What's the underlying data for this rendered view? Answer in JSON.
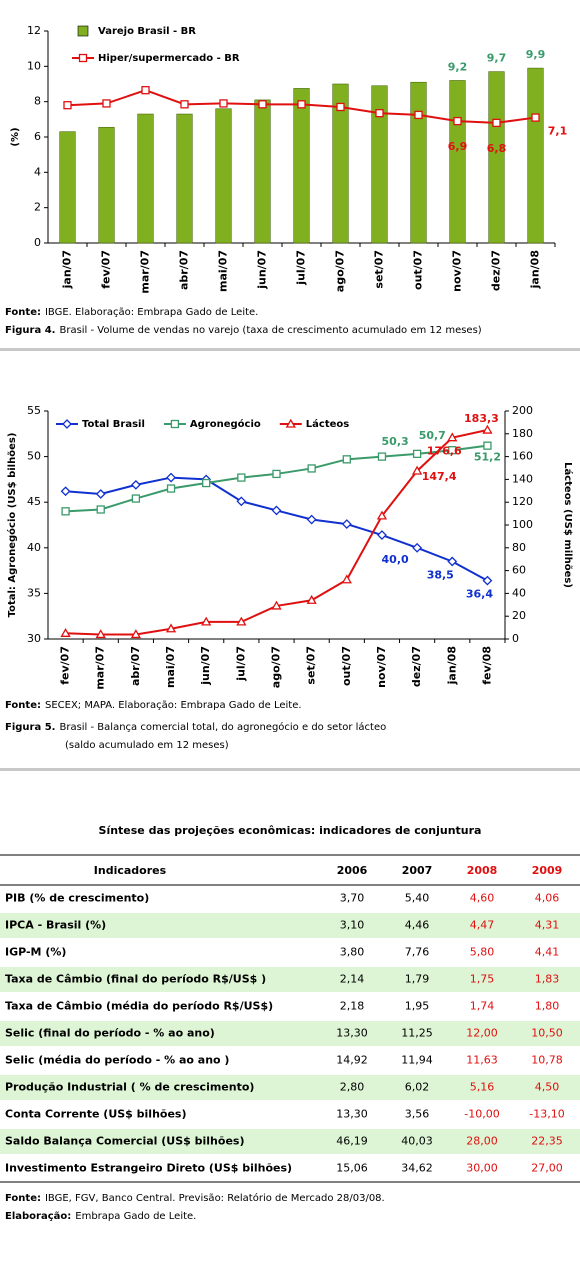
{
  "chart_data": [
    {
      "type": "bar",
      "categories": [
        "jan/07",
        "fev/07",
        "mar/07",
        "abr/07",
        "mai/07",
        "jun/07",
        "jul/07",
        "ago/07",
        "set/07",
        "out/07",
        "nov/07",
        "dez/07",
        "jan/08"
      ],
      "y_label": "(%)",
      "ylim": [
        0,
        12
      ],
      "yticks": [
        0,
        2,
        4,
        6,
        8,
        10,
        12
      ],
      "legend": "top-left",
      "series": [
        {
          "name": "Varejo Brasil - BR",
          "type": "bar",
          "color": "#80b020",
          "values": [
            6.3,
            6.55,
            7.3,
            7.3,
            7.6,
            8.1,
            8.75,
            9.0,
            8.9,
            9.1,
            9.2,
            9.7,
            9.9
          ],
          "value_labels": [
            null,
            null,
            null,
            null,
            null,
            null,
            null,
            null,
            null,
            null,
            "9,2",
            "9,7",
            "9,9"
          ],
          "label_color": "#3a9a6a"
        },
        {
          "name": "Hiper/supermercado - BR",
          "type": "line",
          "color": "#e01010",
          "marker": "square",
          "values": [
            7.8,
            7.9,
            8.65,
            7.85,
            7.9,
            7.85,
            7.85,
            7.7,
            7.35,
            7.25,
            6.9,
            6.8,
            7.1
          ],
          "value_labels": [
            null,
            null,
            null,
            null,
            null,
            null,
            null,
            null,
            null,
            null,
            "6,9",
            "6,8",
            "7,1"
          ],
          "label_color": "#e01010"
        }
      ]
    },
    {
      "type": "line",
      "categories": [
        "fev/07",
        "mar/07",
        "abr/07",
        "mai/07",
        "jun/07",
        "jul/07",
        "ago/07",
        "set/07",
        "out/07",
        "nov/07",
        "dez/07",
        "jan/08",
        "fev/08"
      ],
      "y_label": "Total: Agronegócio (US$ bilhões)",
      "y2_label": "Lácteos (US$ milhões)",
      "ylim": [
        30,
        55
      ],
      "yticks": [
        30,
        35,
        40,
        45,
        50,
        55
      ],
      "y2lim": [
        0,
        200
      ],
      "y2ticks": [
        0,
        20,
        40,
        60,
        80,
        100,
        120,
        140,
        160,
        180,
        200
      ],
      "legend": "top",
      "series": [
        {
          "name": "Total Brasil",
          "color": "#1030d0",
          "marker": "diamond",
          "values": [
            46.2,
            45.9,
            46.9,
            47.7,
            47.5,
            45.1,
            44.1,
            43.1,
            42.6,
            41.4,
            40.0,
            38.5,
            36.4
          ],
          "value_labels": [
            null,
            null,
            null,
            null,
            null,
            null,
            null,
            null,
            null,
            null,
            "40,0",
            "38,5",
            "36,4"
          ],
          "label_color": "#1030d0"
        },
        {
          "name": "Agronegócio",
          "color": "#3a9a6a",
          "marker": "square",
          "values": [
            44.0,
            44.2,
            45.4,
            46.5,
            47.1,
            47.7,
            48.1,
            48.7,
            49.7,
            50.0,
            50.3,
            50.7,
            51.2
          ],
          "value_labels": [
            null,
            null,
            null,
            null,
            null,
            null,
            null,
            null,
            null,
            null,
            "50,3",
            "50,7",
            "51,2"
          ],
          "label_color": "#3a9a6a"
        },
        {
          "name": "Lácteos",
          "color": "#e01010",
          "marker": "triangle",
          "axis": "y2",
          "values": [
            5,
            4,
            4,
            9,
            15,
            15,
            29,
            34,
            52,
            108,
            147.4,
            176.6,
            183.3
          ],
          "value_labels": [
            null,
            null,
            null,
            null,
            null,
            null,
            null,
            null,
            null,
            null,
            "147,4",
            "176,6",
            "183,3"
          ],
          "label_color": "#e01010"
        }
      ]
    }
  ],
  "figures": [
    {
      "source_label": "Fonte:",
      "source": "IBGE. Elaboração: Embrapa Gado de Leite.",
      "caption_label": "Figura 4.",
      "caption": [
        "Brasil - Volume de vendas no varejo (taxa de crescimento acumulado em 12 meses)"
      ]
    },
    {
      "source_label": "Fonte:",
      "source": "SECEX; MAPA. Elaboração: Embrapa Gado de Leite.",
      "caption_label": "Figura 5.",
      "caption": [
        "Brasil - Balança comercial total, do agronegócio e do setor lácteo",
        "(saldo acumulado em 12 meses)"
      ]
    }
  ],
  "table": {
    "title": "Síntese das projeções econômicas: indicadores de conjuntura",
    "header": [
      "Indicadores",
      "2006",
      "2007",
      "2008",
      "2009"
    ],
    "rows": [
      [
        "PIB (% de crescimento)",
        "3,70",
        "5,40",
        "4,60",
        "4,06"
      ],
      [
        "IPCA - Brasil (%)",
        "3,10",
        "4,46",
        "4,47",
        "4,31"
      ],
      [
        "IGP-M (%)",
        "3,80",
        "7,76",
        "5,80",
        "4,41"
      ],
      [
        "Taxa de Câmbio (final do período R$/US$ )",
        "2,14",
        "1,79",
        "1,75",
        "1,83"
      ],
      [
        "Taxa de Câmbio (média do período R$/US$)",
        "2,18",
        "1,95",
        "1,74",
        "1,80"
      ],
      [
        "Selic (final do período - % ao ano)",
        "13,30",
        "11,25",
        "12,00",
        "10,50"
      ],
      [
        "Selic (média do período - % ao ano )",
        "14,92",
        "11,94",
        "11,63",
        "10,78"
      ],
      [
        "Produção Industrial ( % de crescimento)",
        "2,80",
        "6,02",
        "5,16",
        "4,50"
      ],
      [
        "Conta Corrente (US$ bilhões)",
        "13,30",
        "3,56",
        "-10,00",
        "-13,10"
      ],
      [
        "Saldo Balança Comercial (US$ bilhões)",
        "46,19",
        "40,03",
        "28,00",
        "22,35"
      ],
      [
        "Investimento Estrangeiro Direto (US$ bilhões)",
        "15,06",
        "34,62",
        "30,00",
        "27,00"
      ]
    ],
    "source_label": "Fonte:",
    "source": "IBGE, FGV, Banco Central. Previsão: Relatório de Mercado 28/03/08.",
    "credit_label": "Elaboração:",
    "credit": "Embrapa Gado de Leite."
  }
}
